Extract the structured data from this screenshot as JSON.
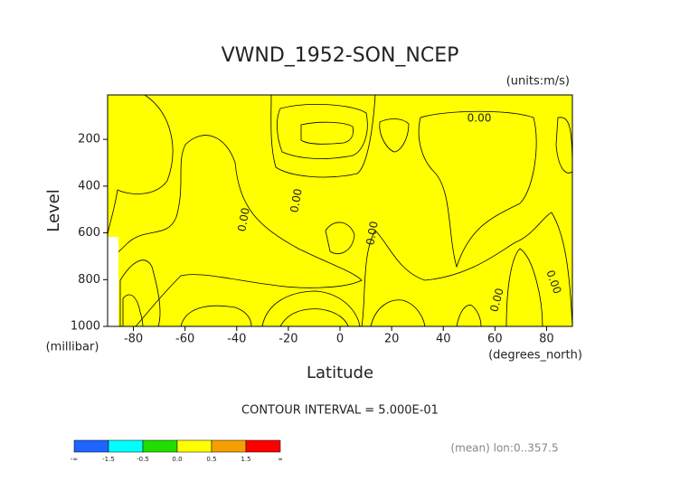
{
  "chart_data": {
    "type": "contour",
    "title": "VWND_1952-SON_NCEP",
    "subtitle": "(units:m/s)",
    "y_label": "Level",
    "y_unit": "(millibar)",
    "x_label": "Latitude",
    "x_unit": "(degrees_north)",
    "xlim": [
      -90,
      90
    ],
    "xticks": [
      -80,
      -60,
      -40,
      -20,
      0,
      20,
      40,
      60,
      80
    ],
    "ylim": [
      1000,
      10
    ],
    "yticks": [
      200,
      400,
      600,
      800,
      1000
    ],
    "annotations": [
      "0.00",
      "0.00",
      "0.00",
      "0.00",
      "0.00",
      "0.00"
    ],
    "contour_interval": "CONTOUR INTERVAL = 5.000E-01",
    "footnote": "(mean) lon:0..357.5",
    "colorbar": {
      "levels": [
        "-∞",
        "-1.5",
        "-0.5",
        "0.0",
        "0.5",
        "1.5",
        "∞"
      ],
      "colors": [
        "#1e64ff",
        "#00ffff",
        "#22dd00",
        "#ffff00",
        "#f5a000",
        "#ff0000"
      ]
    }
  }
}
